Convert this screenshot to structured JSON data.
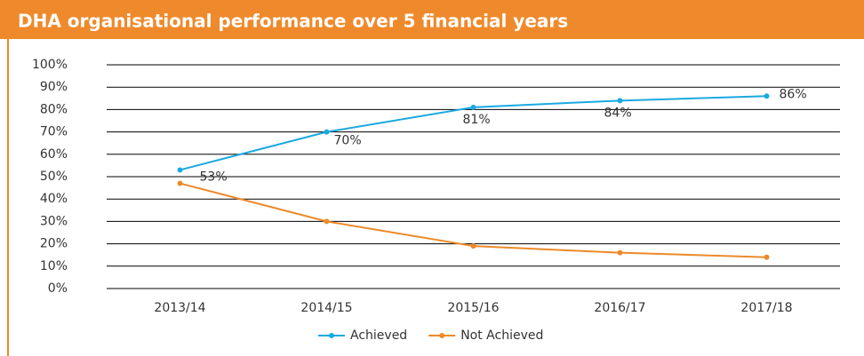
{
  "chart_data": {
    "type": "line",
    "title": "DHA organisational performance over 5 financial years",
    "categories": [
      "2013/14",
      "2014/15",
      "2015/16",
      "2016/17",
      "2017/18"
    ],
    "series": [
      {
        "name": "Achieved",
        "color": "#1ba9e1",
        "values": [
          53,
          70,
          81,
          84,
          86
        ],
        "value_labels": [
          "53%",
          "70%",
          "81%",
          "84%",
          "86%"
        ]
      },
      {
        "name": "Not Achieved",
        "color": "#ec8a2a",
        "values": [
          47,
          30,
          19,
          16,
          14
        ]
      }
    ],
    "ylim": [
      0,
      100
    ],
    "yticks": [
      {
        "value": 0,
        "label": "0%"
      },
      {
        "value": 10,
        "label": "10%"
      },
      {
        "value": 20,
        "label": "20%"
      },
      {
        "value": 30,
        "label": "30%"
      },
      {
        "value": 40,
        "label": "40%"
      },
      {
        "value": 50,
        "label": "50%"
      },
      {
        "value": 60,
        "label": "60%"
      },
      {
        "value": 70,
        "label": "70%"
      },
      {
        "value": 80,
        "label": "80%"
      },
      {
        "value": 90,
        "label": "90%"
      },
      {
        "value": 100,
        "label": "100%"
      }
    ],
    "grid": true,
    "legend": "bottom"
  }
}
